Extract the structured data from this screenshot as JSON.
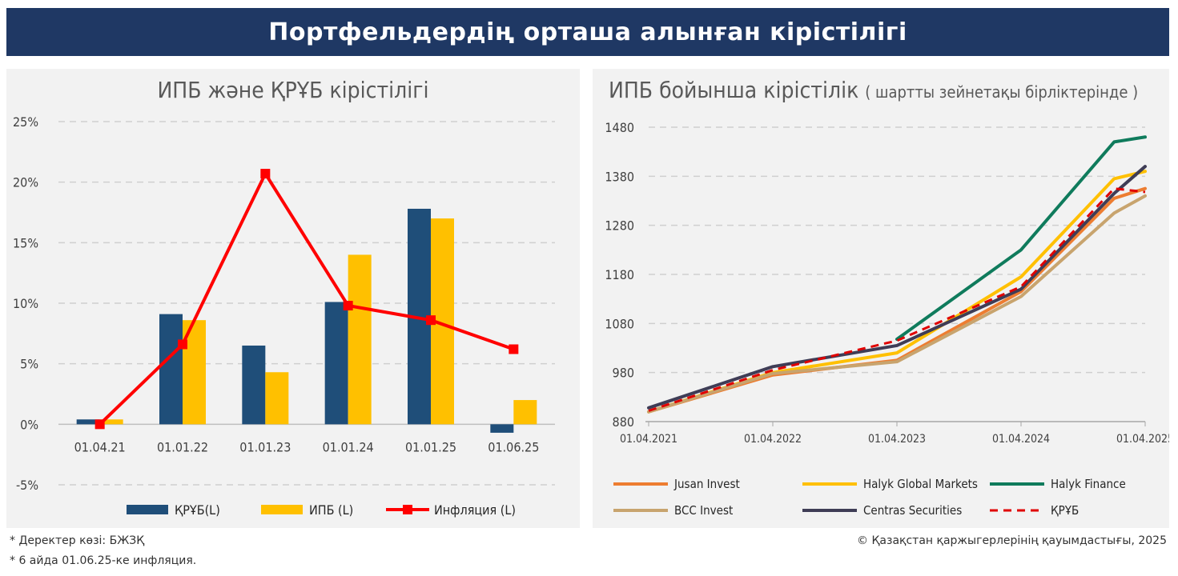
{
  "header": {
    "title": "Портфельдердің орташа алынған кірістілігі"
  },
  "footnotes": {
    "source": "*   Деректер көзі: БЖЗҚ",
    "inflation_note": "* 6 айда 01.06.25-ке инфляция.",
    "copyright": "© Қазақстан қаржыгерлерінің қауымдастығы, 2025"
  },
  "chart_data": [
    {
      "type": "bar",
      "title": "ИПБ және ҚРҰБ кірістілігі",
      "categories": [
        "01.04.21",
        "01.01.22",
        "01.01.23",
        "01.01.24",
        "01.01.25",
        "01.06.25"
      ],
      "ylim": [
        -5,
        25
      ],
      "yticks": [
        "-5%",
        "0%",
        "5%",
        "10%",
        "15%",
        "20%",
        "25%"
      ],
      "ytick_values": [
        -5,
        0,
        5,
        10,
        15,
        20,
        25
      ],
      "grid": true,
      "legend_position": "bottom",
      "series": [
        {
          "name": "ҚРҰБ(L)",
          "kind": "bar",
          "color": "#1f4e79",
          "values": [
            0.4,
            9.1,
            6.5,
            10.1,
            17.8,
            -0.7
          ]
        },
        {
          "name": "ИПБ (L)",
          "kind": "bar",
          "color": "#ffc000",
          "values": [
            0.4,
            8.6,
            4.3,
            14.0,
            17.0,
            2.0
          ]
        },
        {
          "name": "Инфляция (L)",
          "kind": "line",
          "color": "#ff0000",
          "values": [
            0.0,
            6.6,
            20.7,
            9.8,
            8.6,
            6.2
          ]
        }
      ]
    },
    {
      "type": "line",
      "title": "ИПБ бойынша кірістілік ( шартты зейнетақы бірліктерінде )",
      "x": [
        2021.25,
        2022.25,
        2023.25,
        2024.25,
        2025.25
      ],
      "xticks": [
        "01.04.2021",
        "01.04.2022",
        "01.04.2023",
        "01.04.2024",
        "01.04.2025"
      ],
      "xlim": [
        2021.25,
        2025.25
      ],
      "ylim": [
        880,
        1480
      ],
      "yticks": [
        "880",
        "980",
        "1080",
        "1180",
        "1280",
        "1380",
        "1480"
      ],
      "ytick_values": [
        880,
        980,
        1080,
        1180,
        1280,
        1380,
        1480
      ],
      "grid": true,
      "legend_position": "bottom",
      "series": [
        {
          "name": "Jusan Invest",
          "color": "#ed7d31",
          "dashed": false,
          "points": [
            [
              2021.25,
              900
            ],
            [
              2022.25,
              975
            ],
            [
              2023.25,
              1005
            ],
            [
              2024.25,
              1145
            ],
            [
              2025.0,
              1335
            ],
            [
              2025.25,
              1355
            ]
          ]
        },
        {
          "name": "Halyk Global Markets",
          "color": "#ffc000",
          "dashed": false,
          "points": [
            [
              2021.25,
              900
            ],
            [
              2022.25,
              980
            ],
            [
              2023.25,
              1020
            ],
            [
              2024.25,
              1175
            ],
            [
              2025.0,
              1375
            ],
            [
              2025.25,
              1390
            ]
          ]
        },
        {
          "name": "Halyk Finance",
          "color": "#0f7b5c",
          "dashed": false,
          "points": [
            [
              2023.25,
              1048
            ],
            [
              2024.25,
              1230
            ],
            [
              2025.0,
              1450
            ],
            [
              2025.25,
              1460
            ]
          ]
        },
        {
          "name": "BCC Invest",
          "color": "#c8a46e",
          "dashed": false,
          "points": [
            [
              2021.25,
              900
            ],
            [
              2022.25,
              978
            ],
            [
              2023.25,
              1002
            ],
            [
              2024.25,
              1135
            ],
            [
              2025.0,
              1305
            ],
            [
              2025.25,
              1340
            ]
          ]
        },
        {
          "name": "Centras Securities",
          "color": "#3f3d56",
          "dashed": false,
          "points": [
            [
              2021.25,
              908
            ],
            [
              2022.25,
              992
            ],
            [
              2023.25,
              1035
            ],
            [
              2024.25,
              1150
            ],
            [
              2025.0,
              1345
            ],
            [
              2025.25,
              1400
            ]
          ]
        },
        {
          "name": "ҚРҰБ",
          "color": "#e00000",
          "dashed": true,
          "points": [
            [
              2021.25,
              902
            ],
            [
              2022.25,
              985
            ],
            [
              2023.25,
              1045
            ],
            [
              2024.25,
              1155
            ],
            [
              2025.0,
              1355
            ],
            [
              2025.25,
              1348
            ]
          ]
        }
      ]
    }
  ]
}
